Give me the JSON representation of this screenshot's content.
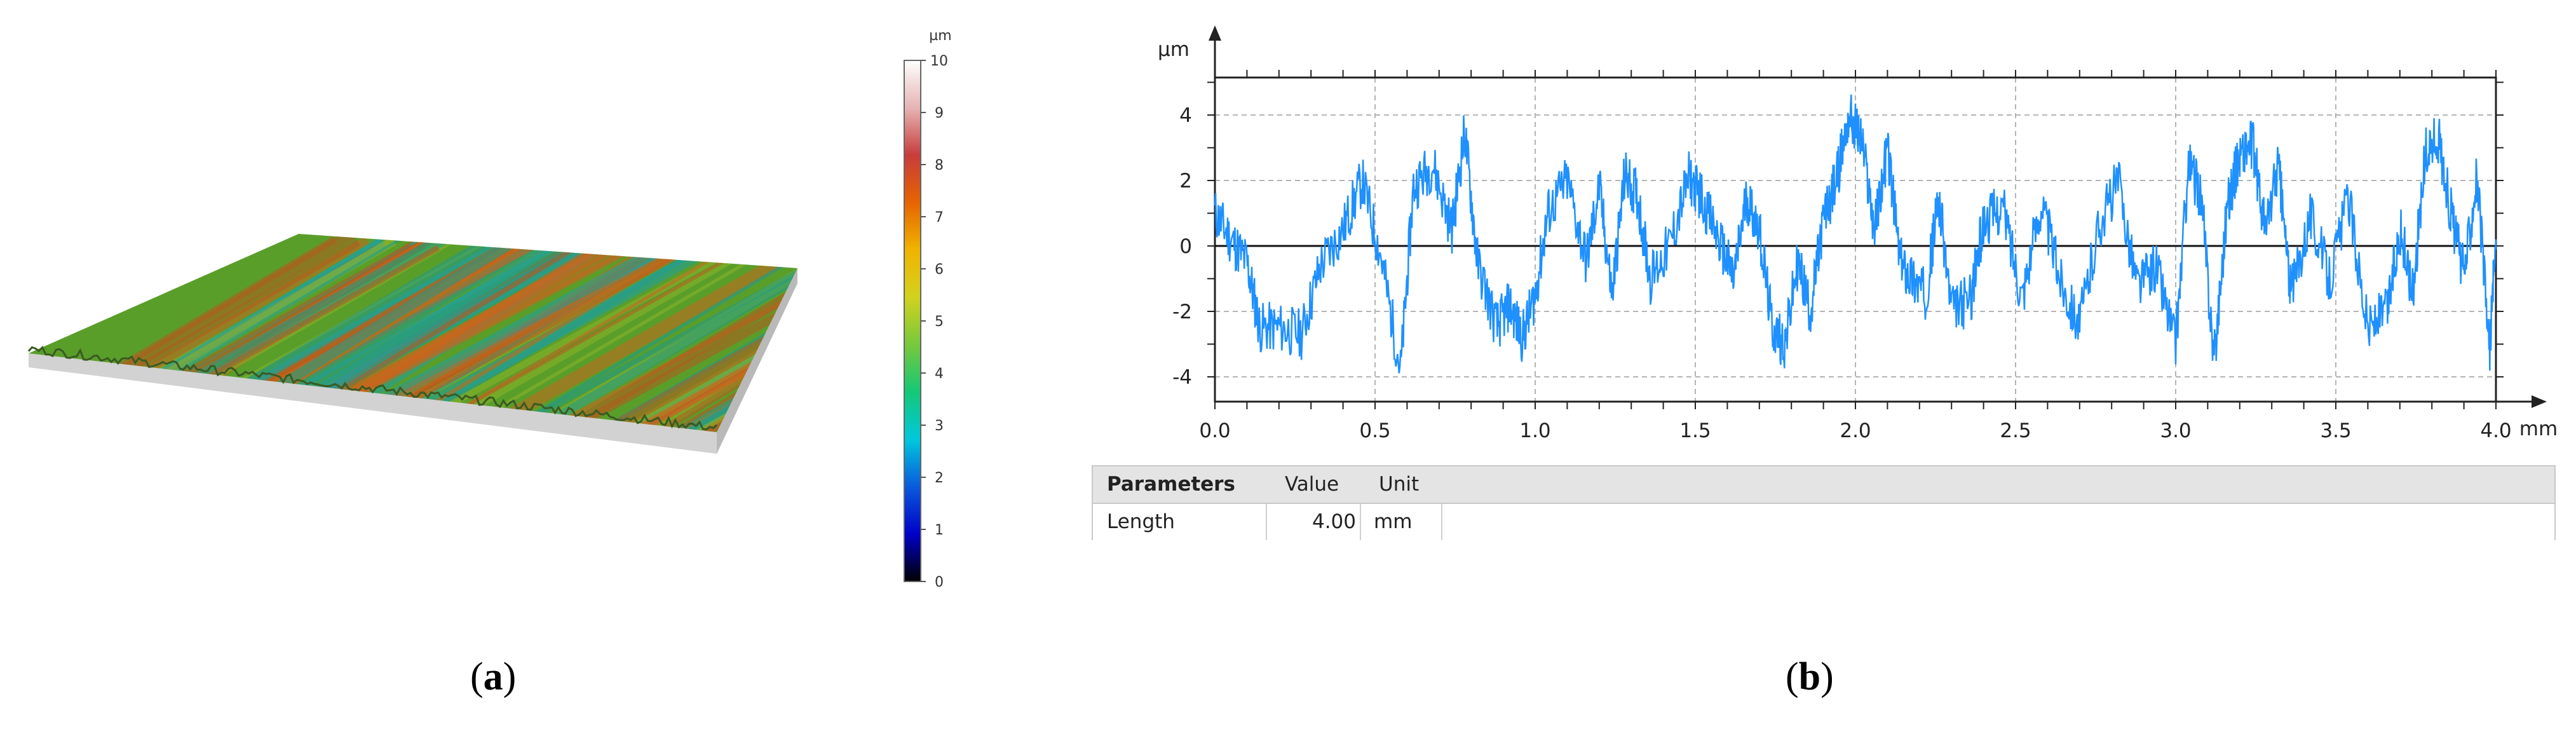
{
  "captions": {
    "a": "a",
    "b": "b"
  },
  "colorbar": {
    "unit": "µm",
    "ticks": [
      "10",
      "9",
      "8",
      "7",
      "6",
      "5",
      "4",
      "3",
      "2",
      "1",
      "0"
    ],
    "range": [
      0,
      10
    ],
    "colors": [
      "#000000",
      "#0000c8",
      "#0a5adc",
      "#00c8dc",
      "#14c878",
      "#78c83c",
      "#d2d21e",
      "#f0b400",
      "#e66400",
      "#c83c3c",
      "#e6b4b4",
      "#ffffff"
    ]
  },
  "surface": {
    "base_color": "#5a9e2a",
    "stripe_colors": [
      "#b45a1e",
      "#1e9a8a",
      "#c8641e",
      "#1ea0a0",
      "#8cb428"
    ],
    "side_color": "#d2d2d2"
  },
  "chart_data": {
    "type": "line",
    "title": "",
    "ylabel": "µm",
    "xlabel": "",
    "x_unit": "mm",
    "xlim": [
      0,
      4.0
    ],
    "ylim": [
      -5.0,
      5.2
    ],
    "xticks": [
      "0.0",
      "0.5",
      "1.0",
      "1.5",
      "2.0",
      "2.5",
      "3.0",
      "3.5",
      "4.0"
    ],
    "yticks": [
      "-4",
      "-2",
      "0",
      "2",
      "4"
    ],
    "grid": true,
    "series_color": "#1e90ff",
    "series": [
      {
        "x": [
          0.0,
          0.05,
          0.1,
          0.14,
          0.2,
          0.27,
          0.33,
          0.4,
          0.46,
          0.52,
          0.58,
          0.62,
          0.68,
          0.74,
          0.78,
          0.82,
          0.88,
          0.92,
          0.96,
          1.0,
          1.04,
          1.1,
          1.16,
          1.2,
          1.24,
          1.28,
          1.32,
          1.36,
          1.42,
          1.48,
          1.52,
          1.58,
          1.62,
          1.66,
          1.7,
          1.74,
          1.78,
          1.82,
          1.86,
          1.9,
          1.94,
          1.98,
          2.02,
          2.06,
          2.1,
          2.14,
          2.18,
          2.22,
          2.26,
          2.3,
          2.36,
          2.4,
          2.46,
          2.52,
          2.58,
          2.64,
          2.7,
          2.76,
          2.82,
          2.88,
          2.94,
          3.0,
          3.04,
          3.08,
          3.12,
          3.16,
          3.2,
          3.24,
          3.28,
          3.32,
          3.36,
          3.42,
          3.48,
          3.54,
          3.6,
          3.66,
          3.7,
          3.74,
          3.78,
          3.82,
          3.86,
          3.9,
          3.94,
          3.98,
          4.0
        ],
        "y": [
          1.0,
          0.2,
          -0.5,
          -2.5,
          -2.5,
          -2.7,
          -0.6,
          0.5,
          2.0,
          -0.4,
          -3.8,
          1.8,
          2.5,
          0.5,
          3.5,
          -0.5,
          -2.5,
          -1.8,
          -2.8,
          -1.5,
          1.0,
          2.0,
          -0.5,
          1.8,
          -1.5,
          2.2,
          1.5,
          -1.0,
          0.0,
          2.1,
          1.5,
          0.0,
          -1.0,
          1.5,
          0.5,
          -2.5,
          -3.0,
          -0.5,
          -2.0,
          0.8,
          2.0,
          4.0,
          3.2,
          0.5,
          3.0,
          -0.5,
          -1.0,
          -1.5,
          1.5,
          -2.0,
          -1.6,
          0.7,
          1.2,
          -1.5,
          1.3,
          -1.0,
          -2.4,
          0.6,
          2.0,
          -1.2,
          -0.6,
          -3.0,
          2.5,
          1.5,
          -3.5,
          1.2,
          2.8,
          3.1,
          0.4,
          2.5,
          -1.5,
          1.0,
          -1.0,
          1.5,
          -2.5,
          -2.0,
          0.5,
          -1.4,
          2.8,
          3.3,
          1.0,
          -0.9,
          2.2,
          -3.2,
          0.2
        ]
      }
    ]
  },
  "table": {
    "headers": [
      "Parameters",
      "Value",
      "Unit"
    ],
    "rows": [
      {
        "name": "Length",
        "value": "4.00",
        "unit": "mm"
      }
    ]
  }
}
